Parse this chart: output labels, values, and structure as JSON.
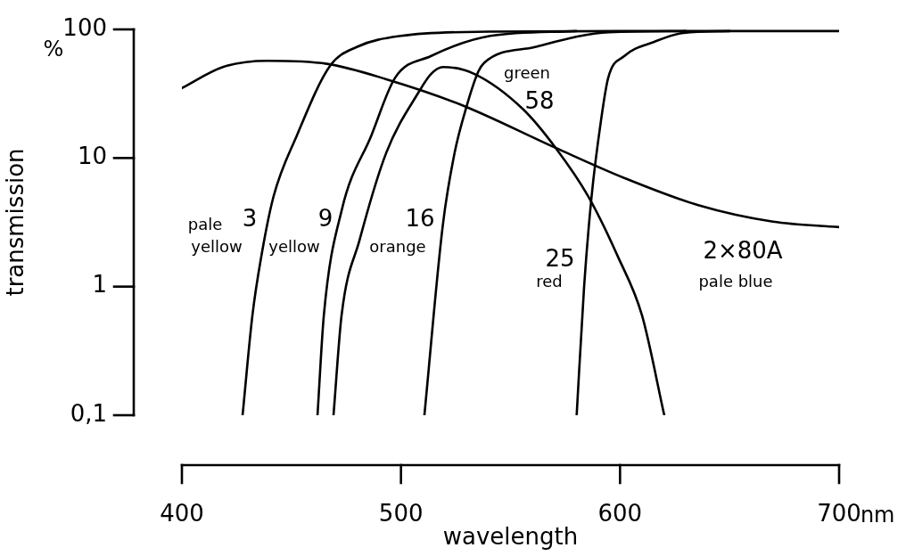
{
  "chart_data": {
    "type": "line",
    "xlabel": "wavelength",
    "ylabel": "transmission",
    "log": "y",
    "marker": "none",
    "line_style": "solid",
    "legend": false,
    "grid": false,
    "xlim": [
      400,
      700
    ],
    "xticks": [
      400,
      500,
      600,
      700
    ],
    "ylim": [
      0.1,
      100
    ],
    "yticks": [
      {
        "value": 0.1,
        "label": "0,1"
      },
      1,
      10,
      100
    ],
    "series": [
      {
        "color": "#000000",
        "x": [
          427.7,
          432.2,
          436.2,
          441.8,
          452.5,
          467.6,
          479.8,
          500,
          540,
          600,
          700
        ],
        "values": [
          0.1,
          0.6,
          1.7,
          5,
          15,
          52,
          73,
          89,
          96,
          97,
          97
        ]
      },
      {
        "color": "#000000",
        "x": [
          461.9,
          464.8,
          472.9,
          486.5,
          497.3,
          513.6,
          540.8,
          580
        ],
        "values": [
          0.1,
          0.6,
          3.9,
          15,
          42,
          62,
          89,
          97
        ]
      },
      {
        "color": "#000000",
        "x": [
          469.2,
          472.9,
          481.1,
          493.3,
          508.3,
          513.7,
          519.2,
          533.6,
          555.7,
          570.6,
          585.6,
          599.1,
          610,
          620.2
        ],
        "values": [
          0.1,
          0.6,
          2.3,
          11,
          33,
          45,
          51,
          45,
          24,
          12,
          5,
          1.7,
          0.6,
          0.1
        ]
      },
      {
        "color": "#000000",
        "x": [
          510.7,
          519.1,
          524.5,
          529.9,
          535.3,
          538,
          561.2,
          595,
          630
        ],
        "values": [
          0.1,
          3,
          11,
          25,
          47,
          55,
          73,
          95,
          97
        ]
      },
      {
        "color": "#000000",
        "x": [
          580.2,
          583.6,
          587,
          591.2,
          594.6,
          601.9,
          615.6,
          629.1,
          650
        ],
        "values": [
          0.1,
          1,
          5,
          19,
          42,
          62,
          80,
          94,
          97
        ]
      },
      {
        "color": "#000000",
        "x": [
          400,
          418.7,
          439,
          466.2,
          493.3,
          527.3,
          570.6,
          601.9,
          635.7,
          669.8,
          700
        ],
        "values": [
          35,
          51,
          57,
          54,
          41,
          26,
          12,
          7,
          4.3,
          3.2,
          2.9
        ]
      }
    ],
    "annotations": [
      "%",
      "nm",
      "pale",
      "3",
      "yellow",
      "9",
      "yellow",
      "16",
      "orange",
      "green",
      "58",
      "25",
      "red",
      "2×80A",
      "pale blue"
    ]
  }
}
